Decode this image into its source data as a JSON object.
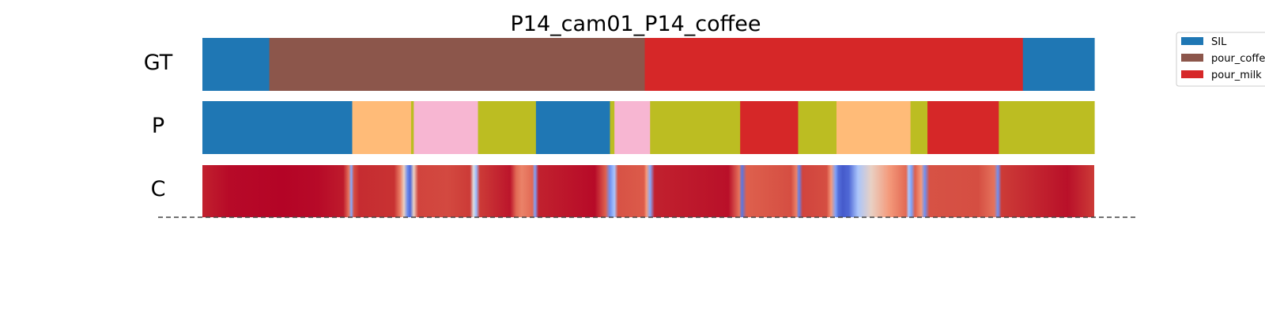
{
  "chart_data": {
    "type": "segmentation",
    "title": "P14_cam01_P14_coffee",
    "row_labels": [
      "GT",
      "P",
      "C"
    ],
    "x_range": [
      0,
      1
    ],
    "colors": {
      "blue": "#1f77b4",
      "brown": "#8c564b",
      "red": "#d62728",
      "orange": "#ffbb78",
      "olive": "#bcbd22",
      "pink": "#f7b6d2"
    },
    "legend": {
      "placement": "upper right, clipped at figure edge",
      "entries": [
        {
          "label": "SIL",
          "color": "#1f77b4"
        },
        {
          "label": "pour_coffee",
          "color": "#8c564b"
        },
        {
          "label": "pour_milk",
          "color": "#d62728"
        }
      ]
    },
    "gt_segments": [
      {
        "start": 0.0,
        "end": 0.075,
        "color": "#1f77b4"
      },
      {
        "start": 0.075,
        "end": 0.496,
        "color": "#8c564b"
      },
      {
        "start": 0.496,
        "end": 0.92,
        "color": "#d62728"
      },
      {
        "start": 0.92,
        "end": 1.0,
        "color": "#1f77b4"
      }
    ],
    "pred_segments": [
      {
        "start": 0.0,
        "end": 0.168,
        "color": "#1f77b4"
      },
      {
        "start": 0.168,
        "end": 0.234,
        "color": "#ffbb78"
      },
      {
        "start": 0.234,
        "end": 0.237,
        "color": "#bcbd22"
      },
      {
        "start": 0.237,
        "end": 0.309,
        "color": "#f7b6d2"
      },
      {
        "start": 0.309,
        "end": 0.374,
        "color": "#bcbd22"
      },
      {
        "start": 0.374,
        "end": 0.457,
        "color": "#1f77b4"
      },
      {
        "start": 0.457,
        "end": 0.462,
        "color": "#bcbd22"
      },
      {
        "start": 0.462,
        "end": 0.502,
        "color": "#f7b6d2"
      },
      {
        "start": 0.502,
        "end": 0.603,
        "color": "#bcbd22"
      },
      {
        "start": 0.603,
        "end": 0.668,
        "color": "#d62728"
      },
      {
        "start": 0.668,
        "end": 0.711,
        "color": "#bcbd22"
      },
      {
        "start": 0.711,
        "end": 0.794,
        "color": "#ffbb78"
      },
      {
        "start": 0.794,
        "end": 0.813,
        "color": "#bcbd22"
      },
      {
        "start": 0.813,
        "end": 0.893,
        "color": "#d62728"
      },
      {
        "start": 0.893,
        "end": 1.0,
        "color": "#bcbd22"
      }
    ],
    "confidence_colormap": "coolwarm",
    "confidence_profile": [
      [
        0.0,
        0.95
      ],
      [
        0.03,
        0.99
      ],
      [
        0.09,
        1.0
      ],
      [
        0.13,
        0.99
      ],
      [
        0.158,
        0.96
      ],
      [
        0.164,
        0.78
      ],
      [
        0.167,
        0.28
      ],
      [
        0.17,
        0.86
      ],
      [
        0.176,
        0.93
      ],
      [
        0.215,
        0.92
      ],
      [
        0.222,
        0.75
      ],
      [
        0.226,
        0.55
      ],
      [
        0.23,
        0.18
      ],
      [
        0.233,
        0.08
      ],
      [
        0.237,
        0.55
      ],
      [
        0.242,
        0.88
      ],
      [
        0.275,
        0.87
      ],
      [
        0.3,
        0.9
      ],
      [
        0.304,
        0.5
      ],
      [
        0.307,
        0.35
      ],
      [
        0.311,
        0.9
      ],
      [
        0.345,
        0.97
      ],
      [
        0.352,
        0.8
      ],
      [
        0.358,
        0.75
      ],
      [
        0.37,
        0.8
      ],
      [
        0.373,
        0.25
      ],
      [
        0.377,
        0.95
      ],
      [
        0.44,
        0.99
      ],
      [
        0.452,
        0.82
      ],
      [
        0.457,
        0.2
      ],
      [
        0.462,
        0.4
      ],
      [
        0.466,
        0.85
      ],
      [
        0.495,
        0.83
      ],
      [
        0.498,
        0.7
      ],
      [
        0.502,
        0.28
      ],
      [
        0.507,
        0.95
      ],
      [
        0.59,
        0.98
      ],
      [
        0.602,
        0.78
      ],
      [
        0.605,
        0.12
      ],
      [
        0.61,
        0.82
      ],
      [
        0.66,
        0.86
      ],
      [
        0.666,
        0.75
      ],
      [
        0.669,
        0.15
      ],
      [
        0.673,
        0.88
      ],
      [
        0.7,
        0.86
      ],
      [
        0.705,
        0.7
      ],
      [
        0.71,
        0.25
      ],
      [
        0.713,
        0.1
      ],
      [
        0.718,
        0.04
      ],
      [
        0.725,
        0.08
      ],
      [
        0.735,
        0.4
      ],
      [
        0.75,
        0.55
      ],
      [
        0.77,
        0.7
      ],
      [
        0.789,
        0.8
      ],
      [
        0.792,
        0.4
      ],
      [
        0.795,
        0.25
      ],
      [
        0.799,
        0.82
      ],
      [
        0.806,
        0.7
      ],
      [
        0.81,
        0.2
      ],
      [
        0.815,
        0.85
      ],
      [
        0.87,
        0.86
      ],
      [
        0.888,
        0.78
      ],
      [
        0.892,
        0.2
      ],
      [
        0.896,
        0.9
      ],
      [
        0.94,
        0.95
      ],
      [
        0.97,
        0.98
      ],
      [
        1.0,
        0.9
      ]
    ]
  }
}
